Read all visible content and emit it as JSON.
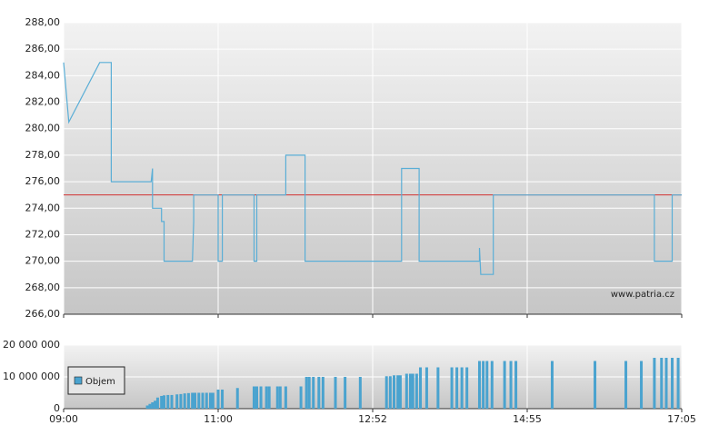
{
  "chart_data": [
    {
      "type": "line",
      "x": [
        540,
        544,
        568,
        577,
        577,
        608,
        609,
        609,
        609,
        616,
        616,
        618,
        618,
        640,
        641,
        641,
        660,
        660,
        663,
        663,
        686,
        686,
        688,
        688,
        709,
        709,
        723,
        723,
        795,
        795,
        809,
        809,
        857,
        857,
        858,
        858,
        868,
        868,
        1002,
        1002,
        1017,
        1017,
        1025
      ],
      "series": [
        {
          "color": "#5aaed6",
          "values": [
            285,
            280.5,
            285,
            285,
            276,
            276,
            277,
            274,
            274,
            274,
            273,
            273,
            270,
            270,
            273,
            275,
            275,
            270,
            270,
            275,
            275,
            270,
            270,
            275,
            275,
            278,
            278,
            270,
            270,
            277,
            277,
            270,
            270,
            271,
            269,
            269,
            269,
            275,
            275,
            270,
            270,
            275,
            275
          ]
        }
      ],
      "reference_line": {
        "value": 275,
        "color": "#d03030"
      },
      "ylim": [
        266,
        288
      ],
      "yticks": [
        {
          "value": 266,
          "label": "266,00"
        },
        {
          "value": 268,
          "label": "268,00"
        },
        {
          "value": 270,
          "label": "270,00"
        },
        {
          "value": 272,
          "label": "272,00"
        },
        {
          "value": 274,
          "label": "274,00"
        },
        {
          "value": 276,
          "label": "276,00"
        },
        {
          "value": 278,
          "label": "278,00"
        },
        {
          "value": 280,
          "label": "280,00"
        },
        {
          "value": 282,
          "label": "282,00"
        },
        {
          "value": 284,
          "label": "284,00"
        },
        {
          "value": 286,
          "label": "286,00"
        },
        {
          "value": 288,
          "label": "288,00"
        }
      ],
      "grid": true,
      "watermark": "www.patria.cz"
    },
    {
      "type": "bar",
      "x": [
        605,
        607,
        609,
        611,
        613,
        616,
        618,
        621,
        624,
        628,
        631,
        634,
        637,
        640,
        642,
        645,
        648,
        651,
        654,
        656,
        660,
        663,
        674,
        686,
        688,
        691,
        695,
        697,
        703,
        705,
        709,
        720,
        724,
        726,
        729,
        733,
        736,
        745,
        752,
        763,
        783,
        786,
        789,
        792,
        794,
        799,
        802,
        804,
        807,
        810,
        815,
        824,
        835,
        839,
        843,
        847,
        857,
        860,
        863,
        867,
        877,
        882,
        886,
        916,
        952,
        978,
        991,
        1002,
        1008,
        1012,
        1017,
        1022
      ],
      "series": [
        {
          "name": "Objem",
          "color": "#4aa3cf",
          "values": [
            1000000,
            1500000,
            2000000,
            2500000,
            3500000,
            4000000,
            4200000,
            4300000,
            4300000,
            4500000,
            4600000,
            4800000,
            4900000,
            5000000,
            5000000,
            5000000,
            5000000,
            5000000,
            5000000,
            5000000,
            6000000,
            6000000,
            6500000,
            7000000,
            7000000,
            7000000,
            7000000,
            7000000,
            7000000,
            7000000,
            7000000,
            7000000,
            10000000,
            10000000,
            10000000,
            10000000,
            10000000,
            10000000,
            10000000,
            10000000,
            10200000,
            10200000,
            10500000,
            10500000,
            10500000,
            11000000,
            11000000,
            11000000,
            11000000,
            13000000,
            13000000,
            13000000,
            13000000,
            13000000,
            13000000,
            13000000,
            15000000,
            15000000,
            15000000,
            15000000,
            15000000,
            15000000,
            15000000,
            15000000,
            15000000,
            15000000,
            15000000,
            16000000,
            16000000,
            16000000,
            16000000,
            16000000
          ]
        }
      ],
      "ylim": [
        0,
        20000000
      ],
      "yticks": [
        {
          "value": 0,
          "label": "0"
        },
        {
          "value": 10000000,
          "label": "10 000 000"
        },
        {
          "value": 20000000,
          "label": "20 000 000"
        }
      ],
      "xlim": [
        540,
        1025
      ],
      "xticks": [
        {
          "value": 540,
          "label": "09:00"
        },
        {
          "value": 660,
          "label": "11:00"
        },
        {
          "value": 772,
          "label": "12:52"
        },
        {
          "value": 895,
          "label": "14:55"
        },
        {
          "value": 1025,
          "label": "17:05"
        }
      ],
      "grid": true,
      "legend": "bottom-left"
    }
  ]
}
